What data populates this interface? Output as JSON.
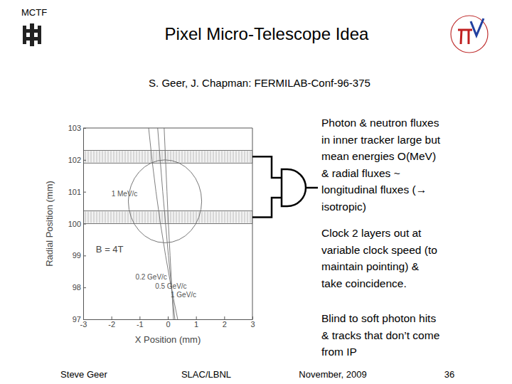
{
  "slide": {
    "header": "MCTF",
    "title": "Pixel Micro-Telescope Idea",
    "subtitle": "S. Geer, J. Chapman:  FERMILAB-Conf-96-375",
    "bullets": [
      [
        "Photon & neutron fluxes",
        "in inner tracker large but",
        "mean energies O(MeV)",
        "& radial fluxes ~",
        "longitudinal fluxes (→",
        "isotropic)"
      ],
      [
        "Clock 2 layers out at",
        "variable clock speed (to",
        "maintain pointing) &",
        "take coincidence."
      ],
      [
        "Blind to soft photon hits",
        "& tracks that don’t come",
        "from IP"
      ]
    ],
    "footer": [
      "Steve Geer",
      "SLAC/LBNL",
      "November, 2009",
      "36"
    ]
  },
  "chart_data": {
    "type": "line",
    "x_label": "X Position (mm)",
    "y_label": "Radial Position (mm)",
    "xlim": [
      -3,
      3
    ],
    "ylim": [
      97,
      103
    ],
    "xticks": [
      -3,
      -2,
      -1,
      0,
      1,
      2,
      3
    ],
    "yticks": [
      97,
      98,
      99,
      100,
      101,
      102,
      103
    ],
    "series": [
      {
        "name": "0.2 GeV/c",
        "color": "#707070",
        "x": [
          0.35,
          0.12,
          -0.08,
          -0.26,
          -0.42,
          -0.56,
          -0.68
        ],
        "values": [
          97,
          98,
          99,
          100,
          101,
          102,
          103
        ]
      },
      {
        "name": "0.5 GeV/c",
        "color": "#707070",
        "x": [
          0.25,
          0.13,
          0.02,
          -0.08,
          -0.18,
          -0.27,
          -0.36
        ],
        "values": [
          97,
          98,
          99,
          100,
          101,
          102,
          103
        ]
      },
      {
        "name": "1 GeV/c",
        "color": "#707070",
        "x": [
          0.2,
          0.14,
          0.08,
          0.02,
          -0.03,
          -0.08,
          -0.13
        ],
        "values": [
          97,
          98,
          99,
          100,
          101,
          102,
          103
        ]
      }
    ],
    "layers": [
      {
        "y0": 101.9,
        "y1": 102.3
      },
      {
        "y0": 100.0,
        "y1": 100.4
      }
    ],
    "circle": {
      "label": "1 MeV/c",
      "x": -0.1,
      "y": 100.7,
      "r": 1.3
    },
    "annotations": [
      "B = 4T"
    ]
  }
}
